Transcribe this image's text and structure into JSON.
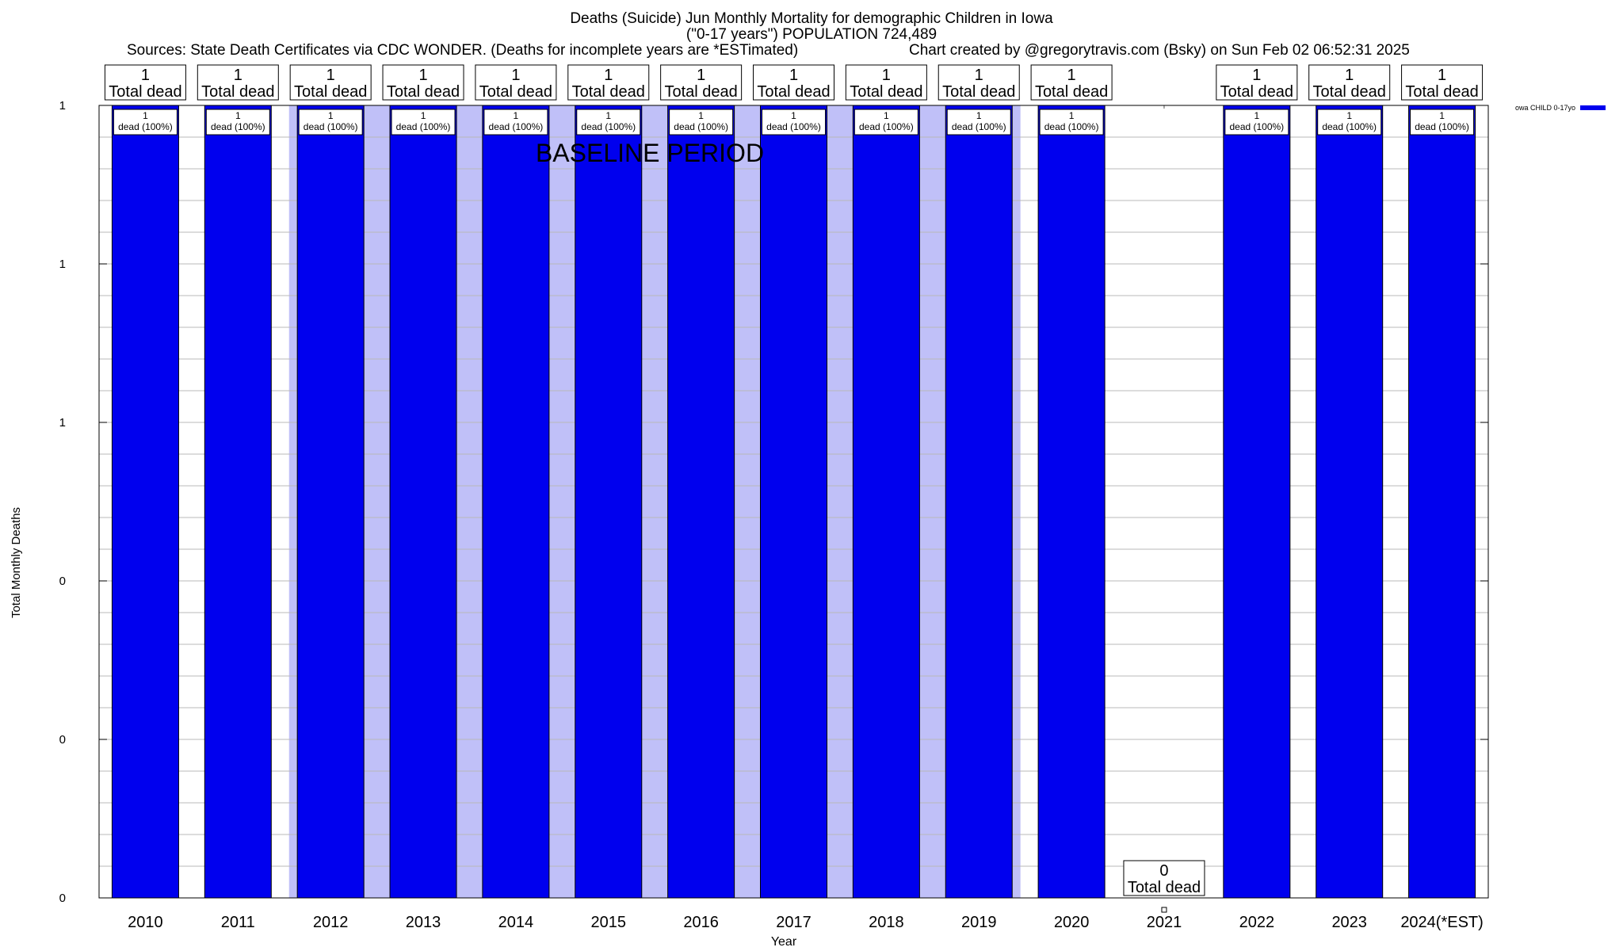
{
  "header": {
    "title_line1": "Deaths (Suicide) Jun Monthly Mortality for demographic Children in Iowa",
    "title_line2": "(\"0-17 years\") POPULATION 724,489",
    "sources": "Sources: State Death Certificates via CDC WONDER. (Deaths for incomplete years are *ESTimated)",
    "credit": "Chart created by @gregorytravis.com (Bsky) on Sun Feb 02 06:52:31 2025"
  },
  "colors": {
    "bar": "#0000ee",
    "baseline_band": "#c0c0f8",
    "grid": "#b8b8b8"
  },
  "chart_data": {
    "type": "bar",
    "title": "Deaths (Suicide) Jun Monthly Mortality for demographic Children in Iowa",
    "xlabel": "Year",
    "ylabel": "Total Monthly Deaths",
    "categories": [
      "2010",
      "2011",
      "2012",
      "2013",
      "2014",
      "2015",
      "2016",
      "2017",
      "2018",
      "2019",
      "2020",
      "2021",
      "2022",
      "2023",
      "2024(*EST)"
    ],
    "series": [
      {
        "name": "owa CHILD 0-17yo",
        "values": [
          1,
          1,
          1,
          1,
          1,
          1,
          1,
          1,
          1,
          1,
          1,
          0,
          1,
          1,
          1
        ]
      }
    ],
    "total_labels": [
      "1",
      "1",
      "1",
      "1",
      "1",
      "1",
      "1",
      "1",
      "1",
      "1",
      "1",
      "0",
      "1",
      "1",
      "1"
    ],
    "total_suffix": "Total dead",
    "bar_labels": [
      "1",
      "1",
      "1",
      "1",
      "1",
      "1",
      "1",
      "1",
      "1",
      "1",
      "1",
      "",
      "1",
      "1",
      "1"
    ],
    "bar_label_suffix": "dead (100%)",
    "ylim": [
      0,
      1
    ],
    "y_ticks": [
      0,
      0.2,
      0.4,
      0.6,
      0.8,
      1
    ],
    "y_tick_labels": [
      "0",
      "0",
      "0",
      "1",
      "1",
      "1"
    ],
    "grid": true,
    "baseline_period": {
      "label": "BASELINE PERIOD",
      "start": "2012",
      "end": "2019"
    },
    "legend_position": "top-right"
  }
}
